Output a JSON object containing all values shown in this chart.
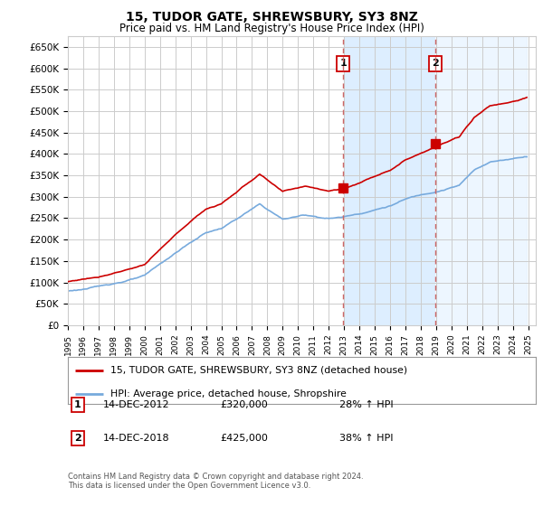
{
  "title": "15, TUDOR GATE, SHREWSBURY, SY3 8NZ",
  "subtitle": "Price paid vs. HM Land Registry's House Price Index (HPI)",
  "ytick_labels": [
    "£0",
    "£50K",
    "£100K",
    "£150K",
    "£200K",
    "£250K",
    "£300K",
    "£350K",
    "£400K",
    "£450K",
    "£500K",
    "£550K",
    "£600K",
    "£650K"
  ],
  "ytick_values": [
    0,
    50000,
    100000,
    150000,
    200000,
    250000,
    300000,
    350000,
    400000,
    450000,
    500000,
    550000,
    600000,
    650000
  ],
  "ylim": [
    0,
    675000
  ],
  "xlim_start": 1995.0,
  "xlim_end": 2025.5,
  "transaction1_date": 2012.958,
  "transaction1_price": 320000,
  "transaction2_date": 2018.958,
  "transaction2_price": 425000,
  "legend_line1": "15, TUDOR GATE, SHREWSBURY, SY3 8NZ (detached house)",
  "legend_line2": "HPI: Average price, detached house, Shropshire",
  "annotation1_label": "1",
  "annotation1_date": "14-DEC-2012",
  "annotation1_price": "£320,000",
  "annotation1_hpi": "28% ↑ HPI",
  "annotation2_label": "2",
  "annotation2_date": "14-DEC-2018",
  "annotation2_price": "£425,000",
  "annotation2_hpi": "38% ↑ HPI",
  "footer": "Contains HM Land Registry data © Crown copyright and database right 2024.\nThis data is licensed under the Open Government Licence v3.0.",
  "line_color_red": "#cc0000",
  "line_color_blue": "#77aadd",
  "shade_color": "#ddeeff",
  "vline_color": "#cc6666",
  "box_color": "#cc0000",
  "background_color": "#ffffff",
  "grid_color": "#cccccc"
}
